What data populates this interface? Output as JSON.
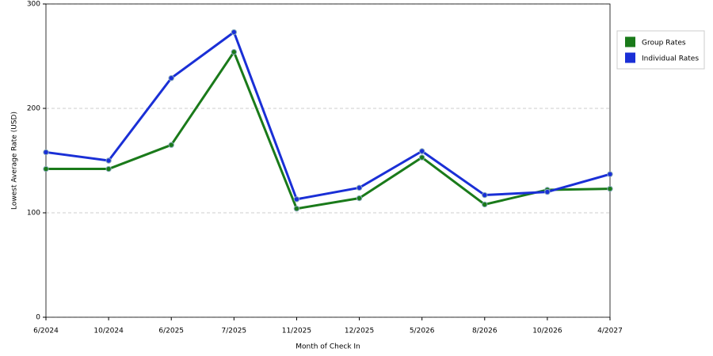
{
  "chart_data": {
    "type": "line",
    "x_label": "Month of Check In",
    "y_label": "Lowest Average Rate (USD)",
    "categories": [
      "6/2024",
      "10/2024",
      "6/2025",
      "7/2025",
      "11/2025",
      "12/2025",
      "5/2026",
      "8/2026",
      "10/2026",
      "4/2027"
    ],
    "series": [
      {
        "name": "Group Rates",
        "color": "#1a7a1a",
        "values": [
          142,
          142,
          165,
          254,
          104,
          114,
          153,
          108,
          122,
          123
        ]
      },
      {
        "name": "Individual Rates",
        "color": "#1a2fd6",
        "values": [
          158,
          150,
          229,
          273,
          113,
          124,
          159,
          117,
          120,
          137
        ]
      }
    ],
    "ylim": [
      0,
      300
    ],
    "yticks": [
      0,
      100,
      200,
      300
    ],
    "grid": true,
    "legend": "right"
  }
}
